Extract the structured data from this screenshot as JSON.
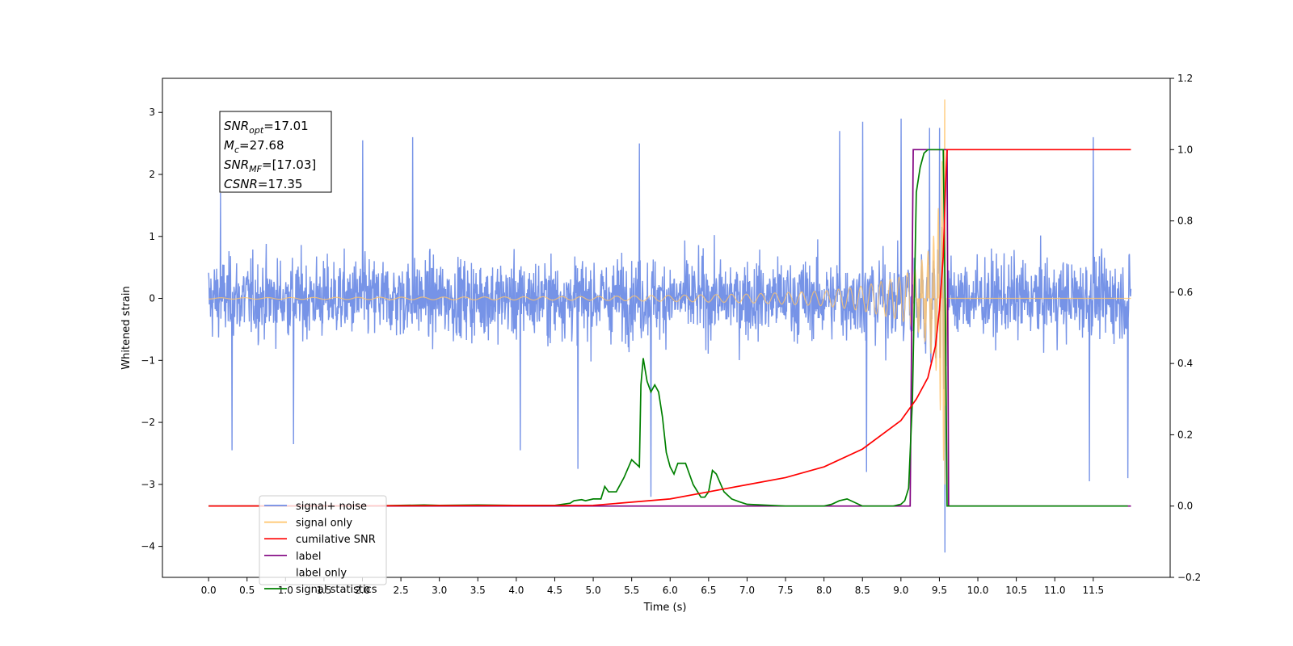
{
  "chart_data": {
    "type": "line",
    "xlabel": "Time (s)",
    "ylabel": "Whitened strain",
    "xlim": [
      -0.6,
      12.5
    ],
    "ylim_left": [
      -4.5,
      3.55
    ],
    "ylim_right": [
      -0.2,
      1.2
    ],
    "x_ticks": [
      "0.0",
      "0.5",
      "1.0",
      "1.5",
      "2.0",
      "2.5",
      "3.0",
      "3.5",
      "4.0",
      "4.5",
      "5.0",
      "5.5",
      "6.0",
      "6.5",
      "7.0",
      "7.5",
      "8.0",
      "8.5",
      "9.0",
      "9.5",
      "10.0",
      "10.5",
      "11.0",
      "11.5"
    ],
    "y_ticks_left": [
      "3",
      "2",
      "1",
      "0",
      "−1",
      "−2",
      "−3",
      "−4"
    ],
    "y_ticks_right": [
      "1.2",
      "1.0",
      "0.8",
      "0.6",
      "0.4",
      "0.2",
      "0.0",
      "−0.2"
    ],
    "annotation": [
      {
        "sym": "SNR",
        "sub": "opt",
        "rest": "=17.01"
      },
      {
        "sym": "M",
        "sub": "c",
        "rest": "=27.68"
      },
      {
        "sym": "SNR",
        "sub": "MF",
        "rest": "=[17.03]"
      },
      {
        "sym": "CSNR",
        "sub": "",
        "rest": "=17.35"
      }
    ],
    "legend": [
      {
        "label": "signal+ noise",
        "color": "#6f8de6"
      },
      {
        "label": "signal only",
        "color": "#ffc46b"
      },
      {
        "label": "cumilative SNR",
        "color": "#ff0000"
      },
      {
        "label": "label",
        "color": "#800080"
      },
      {
        "label": "label only",
        "color": "#aaaaaa"
      },
      {
        "label": "signal statistics",
        "color": "#008000"
      }
    ],
    "series": [
      {
        "name": "signal+ noise",
        "axis": "left",
        "color": "#6f8de6",
        "description_range": [
          -1.4,
          1.3
        ],
        "notable_spikes": [
          {
            "x": 0.15,
            "y": 1.7
          },
          {
            "x": 0.3,
            "y": -2.45
          },
          {
            "x": 1.1,
            "y": -2.35
          },
          {
            "x": 2.0,
            "y": 2.55
          },
          {
            "x": 2.65,
            "y": 2.6
          },
          {
            "x": 4.05,
            "y": -2.45
          },
          {
            "x": 4.8,
            "y": -2.75
          },
          {
            "x": 5.6,
            "y": 2.5
          },
          {
            "x": 5.75,
            "y": -3.2
          },
          {
            "x": 8.2,
            "y": 2.7
          },
          {
            "x": 8.5,
            "y": 2.85
          },
          {
            "x": 8.55,
            "y": -2.8
          },
          {
            "x": 9.0,
            "y": 2.9
          },
          {
            "x": 9.37,
            "y": 2.75
          },
          {
            "x": 9.5,
            "y": 2.75
          },
          {
            "x": 9.57,
            "y": -4.1
          },
          {
            "x": 11.5,
            "y": 2.6
          },
          {
            "x": 11.45,
            "y": -2.95
          },
          {
            "x": 11.95,
            "y": -2.9
          }
        ]
      },
      {
        "name": "signal only",
        "axis": "left",
        "color": "#ffc46b",
        "envelope": [
          [
            0.0,
            0.01
          ],
          [
            5.0,
            0.03
          ],
          [
            6.0,
            0.05
          ],
          [
            7.0,
            0.07
          ],
          [
            8.0,
            0.12
          ],
          [
            8.5,
            0.2
          ],
          [
            9.0,
            0.35
          ],
          [
            9.2,
            0.5
          ],
          [
            9.35,
            0.75
          ],
          [
            9.45,
            1.1
          ],
          [
            9.5,
            1.6
          ],
          [
            9.55,
            2.5
          ],
          [
            9.57,
            3.2
          ],
          [
            9.6,
            0.0
          ],
          [
            11.99,
            0.0
          ]
        ],
        "peak": {
          "x": 9.57,
          "y": 3.2,
          "min": -3.0
        }
      },
      {
        "name": "cumilative SNR",
        "axis": "right",
        "color": "#ff0000",
        "x": [
          0.0,
          5.0,
          6.0,
          6.5,
          7.0,
          7.5,
          8.0,
          8.5,
          9.0,
          9.2,
          9.35,
          9.45,
          9.5,
          9.55,
          9.58,
          9.6,
          11.99
        ],
        "y": [
          0.0,
          0.002,
          0.02,
          0.04,
          0.06,
          0.08,
          0.11,
          0.16,
          0.24,
          0.3,
          0.36,
          0.45,
          0.55,
          0.7,
          0.9,
          1.0,
          1.0
        ]
      },
      {
        "name": "label",
        "axis": "right",
        "color": "#800080",
        "x": [
          0.0,
          9.12,
          9.16,
          9.6,
          9.62,
          11.99
        ],
        "y": [
          0.0,
          0.0,
          1.0,
          1.0,
          0.0,
          0.0
        ]
      },
      {
        "name": "signal statistics",
        "axis": "right",
        "color": "#008000",
        "x": [
          0.0,
          2.0,
          2.8,
          3.0,
          3.5,
          4.0,
          4.5,
          4.7,
          4.75,
          4.85,
          4.9,
          5.0,
          5.1,
          5.15,
          5.2,
          5.3,
          5.4,
          5.5,
          5.6,
          5.62,
          5.65,
          5.7,
          5.75,
          5.8,
          5.85,
          5.9,
          5.95,
          6.0,
          6.05,
          6.1,
          6.2,
          6.3,
          6.4,
          6.45,
          6.5,
          6.55,
          6.6,
          6.7,
          6.8,
          6.9,
          7.0,
          7.5,
          8.0,
          8.1,
          8.2,
          8.3,
          8.5,
          8.9,
          9.0,
          9.05,
          9.1,
          9.15,
          9.2,
          9.25,
          9.3,
          9.35,
          9.4,
          9.45,
          9.5,
          9.55,
          9.58,
          9.6,
          9.62,
          11.95
        ],
        "y": [
          0.0,
          0.0,
          0.003,
          0.002,
          0.003,
          0.002,
          0.002,
          0.008,
          0.015,
          0.018,
          0.015,
          0.02,
          0.02,
          0.055,
          0.04,
          0.04,
          0.08,
          0.13,
          0.11,
          0.34,
          0.415,
          0.35,
          0.32,
          0.34,
          0.32,
          0.25,
          0.15,
          0.11,
          0.09,
          0.12,
          0.12,
          0.06,
          0.025,
          0.025,
          0.04,
          0.1,
          0.09,
          0.04,
          0.02,
          0.012,
          0.005,
          0.0,
          0.0,
          0.005,
          0.015,
          0.02,
          0.0,
          0.0,
          0.005,
          0.015,
          0.05,
          0.3,
          0.88,
          0.95,
          0.99,
          1.0,
          1.0,
          1.0,
          1.0,
          1.0,
          0.5,
          0.0,
          0.0,
          0.0
        ]
      }
    ]
  }
}
